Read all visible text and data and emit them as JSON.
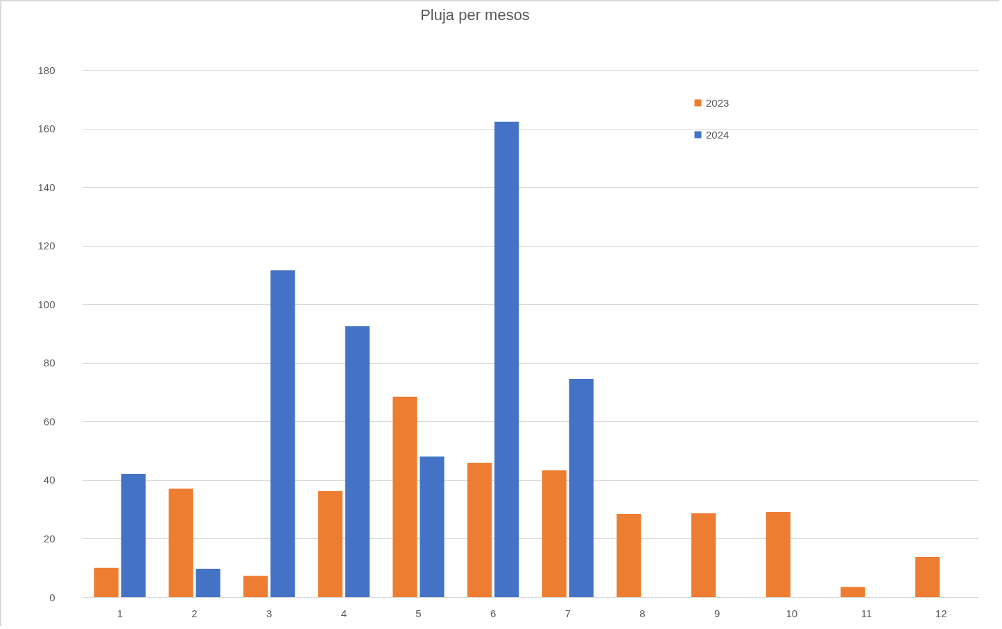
{
  "chart_data": {
    "type": "bar",
    "title": "Pluja per mesos",
    "categories": [
      "1",
      "2",
      "3",
      "4",
      "5",
      "6",
      "7",
      "8",
      "9",
      "10",
      "11",
      "12"
    ],
    "series": [
      {
        "name": "2023",
        "color": "#ed7d31",
        "values": [
          10,
          37,
          7.3,
          36.2,
          68.4,
          45.9,
          43.3,
          28.4,
          28.6,
          29.1,
          3.5,
          13.7
        ]
      },
      {
        "name": "2024",
        "color": "#4472c4",
        "values": [
          42.1,
          9.7,
          111.6,
          92.5,
          48,
          162.3,
          74.5,
          null,
          null,
          null,
          null,
          null
        ]
      }
    ],
    "ylim": [
      0,
      180
    ],
    "yticks": [
      0,
      20,
      40,
      60,
      80,
      100,
      120,
      140,
      160,
      180
    ],
    "grid": "y",
    "legend": "top right"
  }
}
